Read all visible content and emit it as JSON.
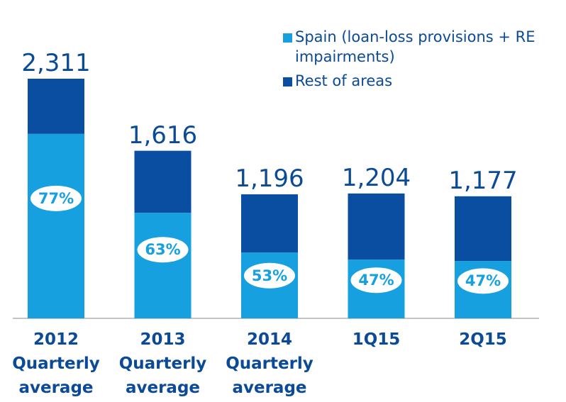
{
  "chart_data": {
    "type": "bar",
    "stacked": true,
    "categories": [
      "2012 Quarterly average",
      "2013 Quarterly average",
      "2014 Quarterly average",
      "1Q15",
      "2Q15"
    ],
    "series": [
      {
        "name": "Spain (loan-loss provisions + RE impairments)",
        "color": "#16a0e0",
        "values": [
          1779,
          1018,
          634,
          566,
          553
        ]
      },
      {
        "name": "Rest of areas",
        "color": "#0a4ea2",
        "values": [
          532,
          598,
          562,
          638,
          624
        ]
      }
    ],
    "totals": [
      2311,
      1616,
      1196,
      1204,
      1177
    ],
    "total_labels": [
      "2,311",
      "1,616",
      "1,196",
      "1,204",
      "1,177"
    ],
    "shares": [
      77,
      63,
      53,
      47,
      47
    ],
    "share_labels": [
      "77%",
      "63%",
      "53%",
      "47%",
      "47%"
    ]
  }
}
